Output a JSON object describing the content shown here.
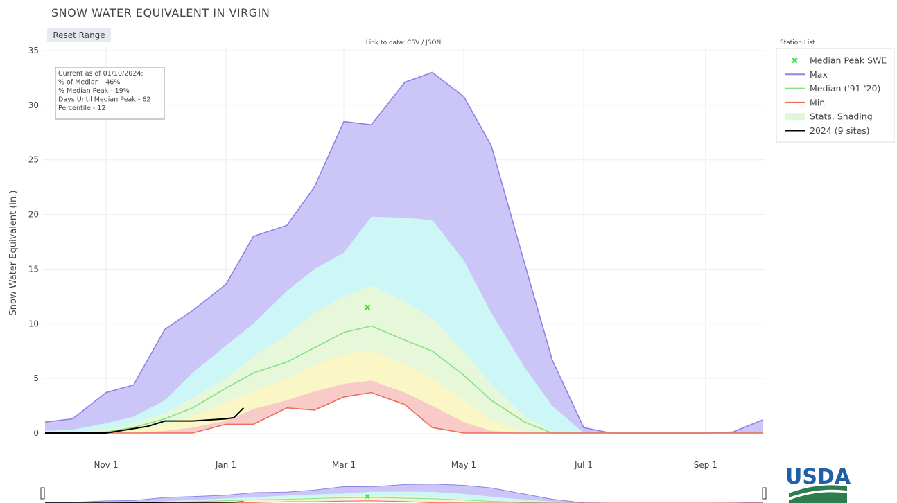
{
  "chart_data": {
    "type": "area",
    "title": "SNOW WATER EQUIVALENT IN VIRGIN",
    "reset_button": "Reset Range",
    "link_text": "Link to data: CSV / JSON",
    "station_list": "Station List",
    "ylabel": "Snow Water Equivalent (in.)",
    "logo": "USDA",
    "annotation": [
      "Current as of 01/10/2024:",
      "% of Median - 46%",
      "% Median Peak - 19%",
      "Days Until Median Peak - 62",
      "Percentile - 12"
    ],
    "x": [
      "Oct 1",
      "Oct 15",
      "Nov 1",
      "Nov 15",
      "Dec 1",
      "Dec 15",
      "Jan 1",
      "Jan 15",
      "Feb 1",
      "Feb 15",
      "Mar 1",
      "Mar 15",
      "Apr 1",
      "Apr 15",
      "May 1",
      "May 15",
      "Jun 1",
      "Jun 15",
      "Jul 1",
      "Jul 15",
      "Aug 1",
      "Aug 15",
      "Sep 1",
      "Sep 15",
      "Sep 30"
    ],
    "xlim": [
      "Oct 1",
      "Sep 30"
    ],
    "xticks": [
      "Nov 1",
      "Jan 1",
      "Mar 1",
      "May 1",
      "Jul 1",
      "Sep 1"
    ],
    "ylim": [
      0,
      35
    ],
    "yticks": [
      0,
      5,
      10,
      15,
      20,
      25,
      30,
      35
    ],
    "grid": true,
    "series": [
      {
        "name": "Max",
        "color": "#8c82e6",
        "fill": "#cbc6f7",
        "values": [
          1.0,
          1.3,
          3.7,
          4.4,
          9.5,
          11.2,
          13.6,
          18,
          19,
          22.5,
          28.5,
          28.2,
          32.1,
          33,
          30.8,
          26.3,
          15.5,
          6.7,
          0.5,
          0,
          0,
          0,
          0,
          0.1,
          1.2
        ]
      },
      {
        "name": "Median ('91-'20)",
        "color": "#86e086",
        "values": [
          0,
          0,
          0.1,
          0.5,
          1.3,
          2.3,
          4.1,
          5.5,
          6.5,
          7.8,
          9.2,
          9.8,
          8.5,
          7.5,
          5.3,
          3,
          1,
          0,
          0,
          0,
          0,
          0,
          0,
          0,
          0
        ]
      },
      {
        "name": "Min",
        "color": "#ef6b5a",
        "fill": "#ffffff",
        "values": [
          0,
          0,
          0,
          0,
          0,
          0,
          0.8,
          0.8,
          2.3,
          2.1,
          3.3,
          3.7,
          2.6,
          0.5,
          0,
          0,
          0,
          0,
          0,
          0,
          0,
          0,
          0,
          0,
          0
        ]
      },
      {
        "name": "2024 (9 sites)",
        "color": "#000000",
        "x": [
          "Oct 1",
          "Oct 15",
          "Nov 1",
          "Nov 15",
          "Nov 22",
          "Dec 1",
          "Dec 15",
          "Jan 1",
          "Jan 5",
          "Jan 10"
        ],
        "values": [
          0,
          0,
          0,
          0.4,
          0.6,
          1.1,
          1.1,
          1.3,
          1.4,
          2.3
        ]
      }
    ],
    "shading": {
      "name": "Stats. Shading",
      "color": "#dff7d8",
      "bands": [
        {
          "color": "#cdf7f6",
          "values": [
            0.2,
            0.3,
            0.9,
            1.5,
            3,
            5.5,
            8,
            10,
            13,
            15,
            16.5,
            19.8,
            19.7,
            19.5,
            15.8,
            11,
            6,
            2.5,
            0,
            0,
            0,
            0,
            0,
            0,
            0
          ]
        },
        {
          "color": "#e7f7d9",
          "values": [
            0,
            0.1,
            0.3,
            0.9,
            1.8,
            3.2,
            5,
            7,
            9,
            11,
            12.5,
            13.5,
            12,
            10.5,
            7.5,
            4.5,
            1.5,
            0.2,
            0,
            0,
            0,
            0,
            0,
            0,
            0
          ]
        },
        {
          "color": "#fbf6c5",
          "values": [
            0,
            0,
            0,
            0.3,
            0.8,
            1.5,
            2.8,
            3.8,
            5,
            6.2,
            7.2,
            7.6,
            6.3,
            5,
            3,
            1.2,
            0,
            0,
            0,
            0,
            0,
            0,
            0,
            0,
            0
          ]
        },
        {
          "color": "#f9cbc8",
          "values": [
            0,
            0,
            0,
            0,
            0.2,
            0.5,
            1.1,
            2.2,
            3,
            3.8,
            4.5,
            4.8,
            3.7,
            2.5,
            1,
            0.2,
            0,
            0,
            0,
            0,
            0,
            0,
            0,
            0,
            0
          ]
        }
      ]
    },
    "peak": {
      "name": "Median Peak SWE",
      "color": "#3ddc3d",
      "x": "Mar 13",
      "value": 11.5
    }
  }
}
